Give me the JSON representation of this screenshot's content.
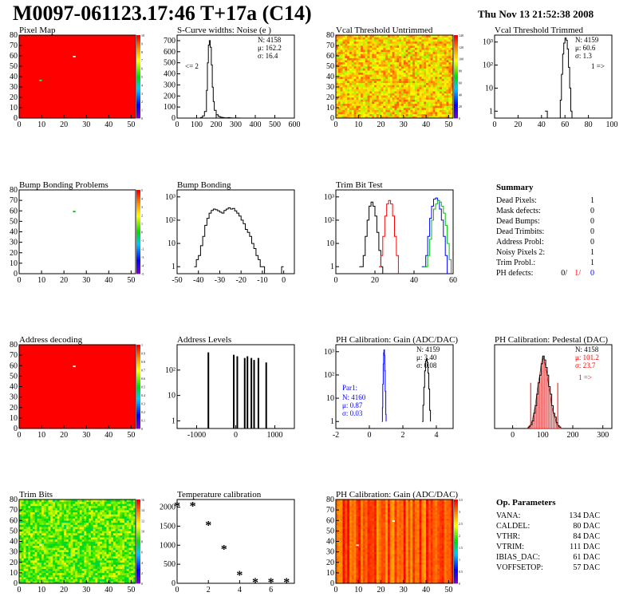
{
  "title": "M0097-061123.17:46 T+17a (C14)",
  "date": "Thu Nov 13 21:52:38 2008",
  "colors": {
    "hist_line": "#000000",
    "red_series": "#ff0000",
    "blue_series": "#0000ff",
    "green_series": "#00c000",
    "map_base": "#ff0000"
  },
  "chart_data": [
    {
      "id": "pixel-map",
      "type": "heatmap",
      "title": "Pixel Map",
      "xlim": [
        0,
        52
      ],
      "ylim": [
        0,
        80
      ],
      "xticks": [
        0,
        10,
        20,
        30,
        40,
        50
      ],
      "yticks": [
        0,
        10,
        20,
        30,
        40,
        50,
        60,
        70,
        80
      ],
      "palette_range": [
        0,
        10
      ],
      "palette_ticks": [
        0,
        1,
        2,
        3,
        4,
        5,
        6,
        7,
        8,
        9,
        10
      ],
      "fill": "uniform-red",
      "hot_pixels": [
        [
          24,
          59
        ],
        [
          9,
          36
        ]
      ]
    },
    {
      "id": "scurve-noise",
      "type": "line",
      "title": "S-Curve widths: Noise (e )",
      "xlim": [
        0,
        600
      ],
      "ylim": [
        0,
        750
      ],
      "xticks": [
        0,
        100,
        200,
        300,
        400,
        500,
        600
      ],
      "yticks": [
        0,
        100,
        200,
        300,
        400,
        500,
        600,
        700
      ],
      "stats": [
        "N: 4158",
        "μ: 162.2",
        "σ: 16.4"
      ],
      "annotation": "<= 2",
      "x": [
        100,
        110,
        120,
        130,
        140,
        150,
        155,
        160,
        165,
        170,
        175,
        180,
        185,
        190,
        200,
        210,
        220,
        230,
        240,
        250,
        260,
        270,
        280,
        300,
        320,
        340
      ],
      "y": [
        0,
        0,
        5,
        20,
        60,
        250,
        500,
        660,
        700,
        640,
        480,
        280,
        150,
        70,
        30,
        15,
        8,
        5,
        3,
        2,
        4,
        2,
        1,
        1,
        0,
        0
      ]
    },
    {
      "id": "vcal-untrimmed",
      "type": "heatmap",
      "title": "Vcal Threshold Untrimmed",
      "xlim": [
        0,
        52
      ],
      "ylim": [
        0,
        80
      ],
      "xticks": [
        0,
        10,
        20,
        30,
        40,
        50
      ],
      "yticks": [
        0,
        10,
        20,
        30,
        40,
        50,
        60,
        70,
        80
      ],
      "palette_range": [
        0,
        140
      ],
      "palette_ticks": [
        0,
        20,
        40,
        60,
        80,
        100,
        120,
        140
      ],
      "fill": "noise-orange-yellow"
    },
    {
      "id": "vcal-trimmed",
      "type": "line",
      "title": "Vcal Threshold Trimmed",
      "ylog": true,
      "xlim": [
        0,
        100
      ],
      "ylim": [
        0.5,
        2000
      ],
      "xticks": [
        0,
        20,
        40,
        60,
        80,
        100
      ],
      "yticks": [
        1,
        10,
        100,
        1000
      ],
      "stats": [
        "N: 4159",
        "μ: 60.6",
        "σ: 1.3"
      ],
      "annotation": "1 =>",
      "x": [
        43,
        44,
        45,
        55,
        56,
        57,
        58,
        59,
        60,
        61,
        62,
        63,
        64,
        65,
        66
      ],
      "y": [
        1,
        1,
        0,
        0,
        3,
        40,
        300,
        900,
        1500,
        1200,
        500,
        80,
        10,
        1,
        0
      ]
    },
    {
      "id": "bump-bonding-problems",
      "type": "heatmap",
      "title": "Bump Bonding Problems",
      "xlim": [
        0,
        52
      ],
      "ylim": [
        0,
        80
      ],
      "xticks": [
        0,
        10,
        20,
        30,
        40,
        50
      ],
      "yticks": [
        0,
        10,
        20,
        30,
        40,
        50,
        60,
        70,
        80
      ],
      "palette_range": [
        -5,
        5
      ],
      "palette_ticks": [
        -5,
        -4,
        -3,
        -2,
        -1,
        0,
        1,
        2,
        3,
        4,
        5
      ],
      "fill": "none",
      "hot_pixels": [
        [
          24,
          59
        ]
      ]
    },
    {
      "id": "bump-bonding",
      "type": "line",
      "title": "Bump Bonding",
      "ylog": true,
      "xlim": [
        -50,
        5
      ],
      "ylim": [
        0.5,
        2000
      ],
      "xticks": [
        -50,
        -40,
        -30,
        -20,
        -10,
        0
      ],
      "yticks": [
        1,
        10,
        100,
        1000
      ],
      "x": [
        -42,
        -41,
        -40,
        -39,
        -38,
        -37,
        -36,
        -35,
        -34,
        -33,
        -32,
        -31,
        -30,
        -29,
        -28,
        -27,
        -26,
        -25,
        -24,
        -23,
        -22,
        -21,
        -20,
        -19,
        -18,
        -17,
        -16,
        -15,
        -14,
        -13,
        -12,
        -11,
        -10,
        -9,
        -8,
        -1,
        0
      ],
      "y": [
        1,
        2,
        3,
        8,
        20,
        60,
        120,
        200,
        260,
        300,
        280,
        250,
        220,
        200,
        260,
        300,
        340,
        300,
        320,
        250,
        200,
        150,
        100,
        70,
        40,
        30,
        20,
        10,
        6,
        3,
        2,
        1,
        1,
        0,
        0,
        1,
        1
      ]
    },
    {
      "id": "trim-bit-test",
      "type": "line",
      "title": "Trim Bit Test",
      "ylog": true,
      "xlim": [
        0,
        60
      ],
      "ylim": [
        0.5,
        2000
      ],
      "xticks": [
        0,
        20,
        40,
        60
      ],
      "yticks": [
        1,
        10,
        100,
        1000
      ],
      "series": [
        {
          "color": "#000000",
          "x": [
            12,
            14,
            15,
            16,
            17,
            18,
            19,
            20,
            21,
            22,
            23,
            24
          ],
          "y": [
            1,
            3,
            20,
            100,
            400,
            600,
            400,
            150,
            30,
            5,
            1,
            0
          ]
        },
        {
          "color": "#ff0000",
          "x": [
            22,
            23,
            24,
            25,
            26,
            27,
            28,
            29,
            30,
            31,
            32
          ],
          "y": [
            1,
            3,
            20,
            150,
            500,
            700,
            500,
            150,
            20,
            3,
            0
          ]
        },
        {
          "color": "#0000ff",
          "x": [
            44,
            46,
            47,
            48,
            49,
            50,
            51,
            52,
            53,
            54,
            55,
            56,
            57
          ],
          "y": [
            1,
            3,
            20,
            120,
            400,
            800,
            900,
            700,
            300,
            100,
            20,
            3,
            0
          ]
        },
        {
          "color": "#00c000",
          "x": [
            45,
            47,
            48,
            49,
            50,
            51,
            52,
            53,
            54,
            55,
            56,
            57,
            58,
            59
          ],
          "y": [
            1,
            3,
            15,
            100,
            300,
            500,
            700,
            600,
            400,
            200,
            60,
            10,
            2,
            0
          ]
        }
      ]
    },
    {
      "id": "summary",
      "type": "table",
      "title": "Summary",
      "rows": [
        {
          "label": "Dead Pixels:",
          "value": "1"
        },
        {
          "label": "Mask defects:",
          "value": "0"
        },
        {
          "label": "Dead Bumps:",
          "value": "0"
        },
        {
          "label": "Dead Trimbits:",
          "value": "0"
        },
        {
          "label": "Address Probl:",
          "value": "0"
        },
        {
          "label": "Noisy Pixels 2:",
          "value": "1"
        },
        {
          "label": "Trim Probl.:",
          "value": "1"
        }
      ],
      "ph_defects": {
        "label": "PH defects:",
        "values": [
          "0/",
          "1/",
          "0"
        ]
      }
    },
    {
      "id": "address-decoding",
      "type": "heatmap",
      "title": "Address decoding",
      "xlim": [
        0,
        52
      ],
      "ylim": [
        0,
        80
      ],
      "xticks": [
        0,
        10,
        20,
        30,
        40,
        50
      ],
      "yticks": [
        0,
        10,
        20,
        30,
        40,
        50,
        60,
        70,
        80
      ],
      "palette_range": [
        0,
        1
      ],
      "palette_ticks": [
        0,
        0.1,
        0.2,
        0.3,
        0.4,
        0.5,
        0.6,
        0.7,
        0.8,
        0.9,
        1
      ],
      "fill": "uniform-red",
      "hot_pixels": [
        [
          24,
          59
        ]
      ]
    },
    {
      "id": "address-levels",
      "type": "line",
      "title": "Address Levels",
      "ylog": true,
      "xlim": [
        -1500,
        1500
      ],
      "ylim": [
        0.5,
        1000
      ],
      "xticks": [
        -1000,
        0,
        1000
      ],
      "yticks": [
        1,
        10,
        100
      ],
      "peaks": [
        -700,
        -50,
        40,
        230,
        300,
        400,
        470,
        580,
        780
      ],
      "peak_heights": [
        500,
        400,
        350,
        300,
        350,
        300,
        250,
        300,
        200
      ]
    },
    {
      "id": "ph-gain",
      "type": "line",
      "title": "PH Calibration: Gain (ADC/DAC)",
      "ylog": true,
      "xlim": [
        -2,
        5
      ],
      "ylim": [
        0.5,
        2000
      ],
      "xticks": [
        -2,
        0,
        2,
        4
      ],
      "yticks": [
        1,
        10,
        100,
        1000
      ],
      "stats": [
        "N: 4159",
        "μ: 3.40",
        "σ: 0.08"
      ],
      "par_label": "Par1:",
      "par_stats": [
        "N: 4160",
        "μ: 0.87",
        "σ: 0.03"
      ],
      "series": [
        {
          "color": "#000000",
          "x": [
            3.15,
            3.2,
            3.25,
            3.3,
            3.35,
            3.4,
            3.45,
            3.5,
            3.55,
            3.6,
            3.65
          ],
          "y": [
            1,
            5,
            30,
            150,
            400,
            500,
            350,
            120,
            25,
            3,
            1
          ]
        },
        {
          "color": "#0000ff",
          "x": [
            0.75,
            0.78,
            0.8,
            0.83,
            0.85,
            0.87,
            0.9,
            0.92,
            0.95,
            0.98,
            1.0
          ],
          "y": [
            1,
            4,
            40,
            300,
            900,
            1200,
            700,
            150,
            20,
            2,
            1
          ]
        }
      ]
    },
    {
      "id": "ph-pedestal",
      "type": "line",
      "title": "PH Calibration: Pedestal (DAC)",
      "xlim": [
        -60,
        330
      ],
      "ylim": [
        0,
        110
      ],
      "xticks": [
        0,
        100,
        200,
        300
      ],
      "yticks": [],
      "stats": [
        "N: 4158",
        "μ: 101.2",
        "σ: 23.7"
      ],
      "annotation": "1 =>",
      "x": [
        50,
        55,
        60,
        65,
        70,
        75,
        80,
        85,
        90,
        95,
        100,
        105,
        110,
        115,
        120,
        125,
        130,
        135,
        140,
        145,
        150,
        155,
        160
      ],
      "y": [
        1,
        3,
        5,
        10,
        20,
        30,
        45,
        60,
        70,
        85,
        95,
        90,
        80,
        70,
        55,
        45,
        30,
        20,
        15,
        8,
        4,
        2,
        1
      ]
    },
    {
      "id": "trim-bits",
      "type": "heatmap",
      "title": "Trim Bits",
      "xlim": [
        0,
        52
      ],
      "ylim": [
        0,
        80
      ],
      "xticks": [
        0,
        10,
        20,
        30,
        40,
        50
      ],
      "yticks": [
        0,
        10,
        20,
        30,
        40,
        50,
        60,
        70,
        80
      ],
      "palette_range": [
        0,
        16
      ],
      "palette_ticks": [
        0,
        2,
        4,
        6,
        8,
        10,
        12,
        14,
        16
      ],
      "fill": "noise-green-yellow",
      "hot_pixels": [
        [
          9,
          36
        ]
      ]
    },
    {
      "id": "temperature-calibration",
      "type": "scatter",
      "title": "Temperature calibration",
      "xlim": [
        0,
        7.5
      ],
      "ylim": [
        0,
        2200
      ],
      "xticks": [
        0,
        2,
        4,
        6
      ],
      "yticks": [
        0,
        500,
        1000,
        1500,
        2000
      ],
      "x": [
        0,
        1,
        2,
        3,
        4,
        5,
        6,
        7
      ],
      "y": [
        2020,
        2020,
        1520,
        890,
        210,
        20,
        20,
        20
      ]
    },
    {
      "id": "ph-gain-map",
      "type": "heatmap",
      "title": "PH Calibration: Gain (ADC/DAC)",
      "xlim": [
        0,
        52
      ],
      "ylim": [
        0,
        80
      ],
      "xticks": [
        0,
        10,
        20,
        30,
        40,
        50
      ],
      "yticks": [
        0,
        10,
        20,
        30,
        40,
        50,
        60,
        70,
        80
      ],
      "palette_range": [
        0,
        3.5
      ],
      "palette_ticks": [
        0,
        0.5,
        1,
        1.5,
        2,
        2.5,
        3,
        3.5
      ],
      "fill": "columns-red-orange",
      "hot_pixels": [
        [
          9,
          36
        ],
        [
          25,
          59
        ]
      ]
    },
    {
      "id": "op-parameters",
      "type": "table",
      "title": "Op. Parameters",
      "rows": [
        {
          "label": "VANA:",
          "value": "134 DAC"
        },
        {
          "label": "CALDEL:",
          "value": "80 DAC"
        },
        {
          "label": "VTHR:",
          "value": "84 DAC"
        },
        {
          "label": "VTRIM:",
          "value": "111 DAC"
        },
        {
          "label": "IBIAS_DAC:",
          "value": "61 DAC"
        },
        {
          "label": "VOFFSETOP:",
          "value": "57 DAC"
        }
      ]
    }
  ]
}
